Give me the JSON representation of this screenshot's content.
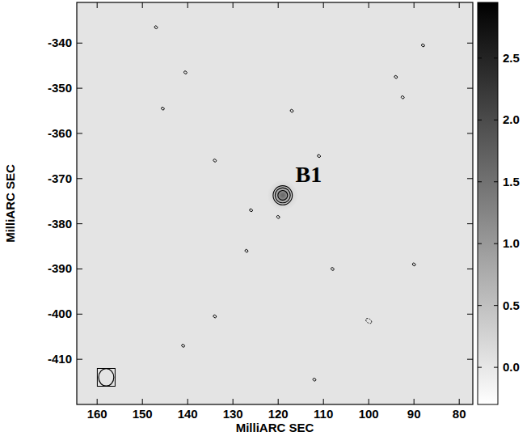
{
  "chart_data": {
    "type": "contour_image",
    "x_label": "MilliARC SEC",
    "y_label": "MilliARC SEC",
    "xlim": [
      164.5,
      77
    ],
    "ylim": [
      -331,
      -420
    ],
    "xticks": [
      160,
      150,
      140,
      130,
      120,
      110,
      100,
      90,
      80
    ],
    "yticks": [
      -340,
      -350,
      -360,
      -370,
      -380,
      -390,
      -400,
      -410
    ],
    "background": 0.05,
    "contour_levels": [
      0.25,
      0.5,
      1.0
    ],
    "sources": [
      {
        "label": "B1",
        "x": 119,
        "y": -373.7,
        "peak": 1.6,
        "size": 1.1
      }
    ],
    "contour_features": [
      {
        "x": 147,
        "y": -336.5
      },
      {
        "x": 140.5,
        "y": -346.5
      },
      {
        "x": 145.5,
        "y": -354.5
      },
      {
        "x": 134,
        "y": -366
      },
      {
        "x": 117,
        "y": -355
      },
      {
        "x": 111,
        "y": -365
      },
      {
        "x": 88,
        "y": -340.5
      },
      {
        "x": 94,
        "y": -347.5
      },
      {
        "x": 92.5,
        "y": -352
      },
      {
        "x": 126,
        "y": -377
      },
      {
        "x": 120,
        "y": -378.5
      },
      {
        "x": 127,
        "y": -386
      },
      {
        "x": 108,
        "y": -390
      },
      {
        "x": 134,
        "y": -400.5
      },
      {
        "x": 141,
        "y": -407
      },
      {
        "x": 90,
        "y": -389
      },
      {
        "x": 100,
        "y": -401.5,
        "line_style": "dashed"
      },
      {
        "x": 112,
        "y": -414.5
      }
    ],
    "beam": {
      "x": 158,
      "y": -414,
      "major": 2.4,
      "minor": 2.1
    },
    "colorbar": {
      "range": [
        -0.3,
        2.95
      ],
      "ticks": [
        {
          "value": 0,
          "label": "0.0"
        },
        {
          "value": 0.5,
          "label": "0.5"
        },
        {
          "value": 1,
          "label": "1.0"
        },
        {
          "value": 1.5,
          "label": "1.5"
        },
        {
          "value": 2,
          "label": "2.0"
        },
        {
          "value": 2.5,
          "label": "2.5"
        }
      ]
    }
  }
}
